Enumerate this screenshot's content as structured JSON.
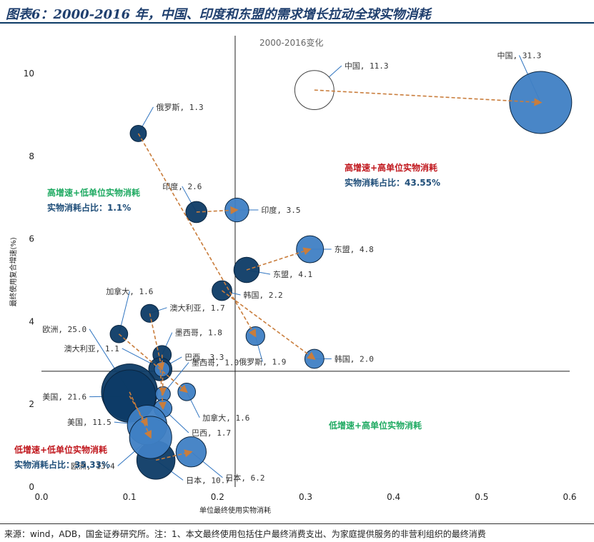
{
  "title": "图表6：2000-2016 年，中国、印度和东盟的需求增长拉动全球实物消耗",
  "source": "来源：wind，ADB，国金证券研究所。注：1、本文最终使用包括住户最终消费支出、为家庭提供服务的非营利组织的最终消费",
  "chart_data": {
    "type": "scatter",
    "title": "2000-2016变化",
    "xlabel": "单位最终使用实物消耗",
    "ylabel": "最终使用复合增速(%)",
    "xlim": [
      0,
      0.6
    ],
    "ylim": [
      0,
      10.5
    ],
    "xticks": [
      "0.0",
      "0.1",
      "0.2",
      "0.3",
      "0.4",
      "0.5",
      "0.6"
    ],
    "yticks": [
      "0",
      "2",
      "4",
      "6",
      "8",
      "10"
    ],
    "series": [
      {
        "name": "2000",
        "color": "#0d3b66",
        "points": [
          {
            "label": "中国, 11.3",
            "x": 0.31,
            "y": 9.6,
            "size": 11.3
          },
          {
            "label": "俄罗斯, 1.3",
            "x": 0.11,
            "y": 8.55,
            "size": 1.3
          },
          {
            "label": "印度, 2.6",
            "x": 0.176,
            "y": 6.65,
            "size": 2.6
          },
          {
            "label": "东盟, 4.1",
            "x": 0.233,
            "y": 5.25,
            "size": 4.1
          },
          {
            "label": "韩国, 2.2",
            "x": 0.205,
            "y": 4.75,
            "size": 2.2
          },
          {
            "label": "加拿大, 1.6",
            "x": 0.088,
            "y": 3.7,
            "size": 1.6
          },
          {
            "label": "澳大利亚, 1.7",
            "x": 0.123,
            "y": 4.2,
            "size": 1.7
          },
          {
            "label": "墨西哥, 1.8",
            "x": 0.137,
            "y": 3.2,
            "size": 1.8
          },
          {
            "label": "巴西, 3.3",
            "x": 0.135,
            "y": 2.85,
            "size": 3.3
          },
          {
            "label": "欧洲, 25.0",
            "x": 0.1,
            "y": 2.3,
            "size": 25.0
          },
          {
            "label": "美国, 21.6",
            "x": 0.1,
            "y": 2.2,
            "size": 21.6
          },
          {
            "label": "日本, 10.7",
            "x": 0.13,
            "y": 0.65,
            "size": 10.7
          }
        ]
      },
      {
        "name": "2016",
        "color": "#3f7fc4",
        "points": [
          {
            "label": "中国, 31.3",
            "x": 0.567,
            "y": 9.3,
            "size": 31.3
          },
          {
            "label": "印度, 3.5",
            "x": 0.222,
            "y": 6.7,
            "size": 3.5
          },
          {
            "label": "东盟, 4.8",
            "x": 0.305,
            "y": 5.75,
            "size": 4.8
          },
          {
            "label": "俄罗斯, 1.9",
            "x": 0.243,
            "y": 3.65,
            "size": 1.9
          },
          {
            "label": "韩国, 2.0",
            "x": 0.31,
            "y": 3.1,
            "size": 2.0
          },
          {
            "label": "澳大利亚, 1.1",
            "x": 0.137,
            "y": 2.85,
            "size": 1.1
          },
          {
            "label": "墨西哥, 1.0",
            "x": 0.138,
            "y": 2.25,
            "size": 1.0
          },
          {
            "label": "加拿大, 1.6",
            "x": 0.165,
            "y": 2.3,
            "size": 1.6
          },
          {
            "label": "巴西, 1.7",
            "x": 0.138,
            "y": 1.9,
            "size": 1.7
          },
          {
            "label": "美国, 11.5",
            "x": 0.12,
            "y": 1.5,
            "size": 11.5
          },
          {
            "label": "欧洲, 13.4",
            "x": 0.124,
            "y": 1.2,
            "size": 13.4
          },
          {
            "label": "日本, 6.2",
            "x": 0.17,
            "y": 0.85,
            "size": 6.2
          }
        ]
      }
    ],
    "quadrants": [
      {
        "lines": [
          "高增速+低单位实物消耗",
          "实物消耗占比：1.1%"
        ],
        "colors": [
          "#1faa62",
          "#1f4e79"
        ]
      },
      {
        "lines": [
          "高增速+高单位实物消耗",
          "实物消耗占比：43.55%"
        ],
        "colors": [
          "#c0161c",
          "#1f4e79"
        ]
      },
      {
        "lines": [
          "低增速+高单位实物消耗"
        ],
        "colors": [
          "#1faa62"
        ]
      },
      {
        "lines": [
          "低增速+低单位实物消耗",
          "实物消耗占比：35.33%"
        ],
        "colors": [
          "#c0161c",
          "#1f4e79"
        ]
      }
    ]
  }
}
